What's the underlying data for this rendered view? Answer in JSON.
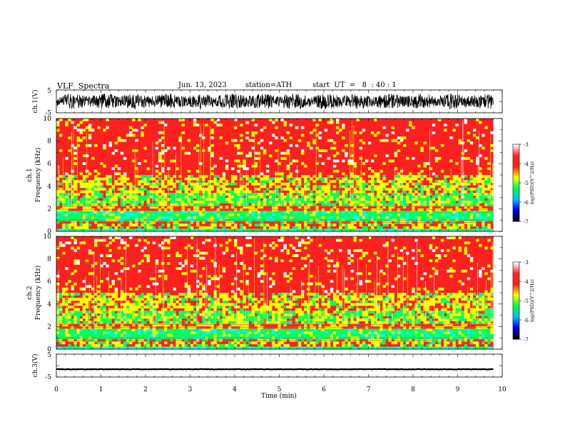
{
  "header": {
    "title": "VLF  Spectra",
    "date": "Jun. 13, 2023",
    "station": "station=ATH",
    "start": "start  UT  =   8  : 40 : 1"
  },
  "chart_data": [
    {
      "type": "line",
      "panel": "ch1-waveform",
      "ylabel": "ch.1(V)",
      "ylim": [
        -5,
        5
      ],
      "yticks": [
        "5",
        "-5"
      ],
      "xlim": [
        0,
        10
      ],
      "data_extent_min": 9.8,
      "amplitude_approx_V": [
        -3.5,
        3.5
      ]
    },
    {
      "type": "heatmap",
      "panel": "ch1-spectrogram",
      "ylabel_line1": "ch.1",
      "ylabel_line2": "Frequency  (kHz)",
      "ylim": [
        0,
        10
      ],
      "yticks": [
        "0",
        "2",
        "4",
        "6",
        "8",
        "10"
      ],
      "xlim": [
        0,
        10
      ],
      "data_extent_min": 9.8,
      "colorbar": {
        "label": "log(PSD)(V^2/Hz)",
        "ticks": [
          "-3",
          "-4",
          "-5",
          "-6",
          "-7"
        ],
        "range": [
          -7,
          -3
        ]
      }
    },
    {
      "type": "heatmap",
      "panel": "ch2-spectrogram",
      "ylabel_line1": "ch.2",
      "ylabel_line2": "Frequency  (kHz)",
      "ylim": [
        0,
        10
      ],
      "yticks": [
        "0",
        "2",
        "4",
        "6",
        "8",
        "10"
      ],
      "xlim": [
        0,
        10
      ],
      "data_extent_min": 9.8,
      "colorbar": {
        "label": "log(PSD)(V^2/Hz)",
        "ticks": [
          "-3",
          "-4",
          "-5",
          "-6",
          "-7"
        ],
        "range": [
          -7,
          -3
        ]
      }
    },
    {
      "type": "line",
      "panel": "ch3-waveform",
      "ylabel": "ch.3(V)",
      "ylim": [
        -5,
        5
      ],
      "yticks": [
        "5",
        "-5"
      ],
      "xlabel": "Time  (min)",
      "xlim": [
        0,
        10
      ],
      "xticks": [
        "0",
        "1",
        "2",
        "3",
        "4",
        "5",
        "6",
        "7",
        "8",
        "9",
        "10"
      ],
      "data_extent_min": 9.8,
      "level_V": -1.6
    }
  ],
  "colors": {
    "high": "#ff2020",
    "mid": "#ffff00",
    "low": "#00ff60",
    "cyan": "#00ffff",
    "trace": "#000000"
  }
}
